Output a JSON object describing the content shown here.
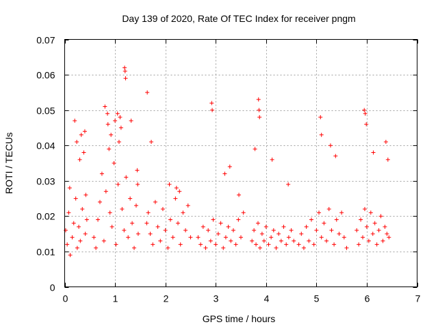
{
  "chart_data": {
    "type": "scatter",
    "title": "Day 139 of 2020, Rate Of TEC Index for receiver pngm",
    "xlabel": "GPS time / hours",
    "ylabel": "ROTI / TECUs",
    "xlim": [
      0,
      7
    ],
    "ylim": [
      0,
      0.07
    ],
    "grid": true,
    "marker": "+",
    "color": "#ff0000",
    "x_ticks": [
      "0",
      "1",
      "2",
      "3",
      "4",
      "5",
      "6",
      "7"
    ],
    "y_ticks": [
      "0",
      "0.01",
      "0.02",
      "0.03",
      "0.04",
      "0.05",
      "0.06",
      "0.07"
    ],
    "series": [
      {
        "name": "ROTI",
        "x": [
          0.02,
          0.05,
          0.08,
          0.11,
          0.15,
          0.18,
          0.22,
          0.25,
          0.28,
          0.31,
          0.35,
          0.38,
          0.41,
          0.44,
          0.1,
          0.2,
          0.24,
          0.3,
          0.33,
          0.4,
          0.42,
          0.58,
          0.62,
          0.66,
          0.7,
          0.74,
          0.78,
          0.82,
          0.86,
          0.9,
          0.94,
          0.98,
          1.02,
          1.06,
          1.1,
          1.14,
          1.18,
          1.22,
          1.26,
          1.3,
          1.34,
          1.38,
          1.42,
          1.46,
          0.8,
          0.85,
          0.88,
          0.92,
          1.0,
          1.05,
          1.08,
          1.12,
          1.19,
          1.2,
          1.21,
          1.32,
          1.44,
          1.45,
          1.63,
          1.66,
          1.7,
          1.75,
          1.8,
          1.85,
          1.9,
          1.95,
          2.0,
          2.05,
          2.1,
          2.15,
          2.2,
          2.25,
          2.3,
          2.35,
          2.4,
          2.45,
          2.5,
          1.64,
          1.72,
          2.08,
          2.22,
          2.28,
          2.65,
          2.7,
          2.75,
          2.8,
          2.85,
          2.9,
          2.95,
          3.0,
          3.05,
          3.1,
          3.15,
          3.2,
          3.25,
          3.3,
          3.35,
          3.4,
          3.45,
          3.5,
          3.55,
          2.92,
          2.93,
          3.18,
          3.28,
          3.46,
          3.72,
          3.76,
          3.8,
          3.84,
          3.88,
          3.92,
          3.96,
          4.0,
          4.05,
          4.1,
          4.15,
          4.2,
          4.25,
          4.3,
          4.35,
          4.4,
          4.45,
          4.5,
          4.55,
          3.85,
          3.86,
          3.87,
          3.78,
          4.12,
          4.44,
          4.65,
          4.7,
          4.75,
          4.8,
          4.85,
          4.9,
          4.95,
          5.0,
          5.05,
          5.1,
          5.15,
          5.2,
          5.25,
          5.3,
          5.35,
          5.4,
          5.45,
          5.5,
          5.55,
          5.6,
          5.08,
          5.1,
          5.28,
          5.38,
          5.8,
          5.84,
          5.88,
          5.92,
          5.96,
          6.0,
          6.04,
          6.08,
          6.12,
          6.16,
          6.2,
          6.24,
          6.28,
          6.32,
          6.36,
          6.4,
          6.44,
          5.95,
          5.97,
          5.99,
          6.13,
          6.38,
          6.42
        ],
        "y": [
          0.016,
          0.012,
          0.021,
          0.009,
          0.014,
          0.018,
          0.025,
          0.011,
          0.017,
          0.013,
          0.022,
          0.038,
          0.015,
          0.019,
          0.028,
          0.047,
          0.041,
          0.036,
          0.043,
          0.044,
          0.026,
          0.014,
          0.011,
          0.019,
          0.024,
          0.032,
          0.013,
          0.027,
          0.046,
          0.021,
          0.017,
          0.035,
          0.012,
          0.029,
          0.048,
          0.022,
          0.016,
          0.031,
          0.014,
          0.025,
          0.018,
          0.011,
          0.023,
          0.015,
          0.051,
          0.049,
          0.039,
          0.043,
          0.047,
          0.049,
          0.041,
          0.045,
          0.062,
          0.061,
          0.059,
          0.047,
          0.033,
          0.029,
          0.018,
          0.021,
          0.015,
          0.012,
          0.024,
          0.017,
          0.013,
          0.022,
          0.016,
          0.011,
          0.019,
          0.014,
          0.025,
          0.018,
          0.012,
          0.021,
          0.016,
          0.023,
          0.014,
          0.055,
          0.041,
          0.029,
          0.028,
          0.027,
          0.014,
          0.012,
          0.017,
          0.011,
          0.016,
          0.013,
          0.019,
          0.012,
          0.015,
          0.018,
          0.011,
          0.014,
          0.017,
          0.013,
          0.016,
          0.012,
          0.019,
          0.014,
          0.021,
          0.052,
          0.05,
          0.032,
          0.034,
          0.026,
          0.013,
          0.016,
          0.012,
          0.018,
          0.011,
          0.015,
          0.013,
          0.017,
          0.012,
          0.014,
          0.016,
          0.011,
          0.015,
          0.013,
          0.017,
          0.012,
          0.014,
          0.016,
          0.013,
          0.053,
          0.05,
          0.048,
          0.039,
          0.036,
          0.029,
          0.012,
          0.015,
          0.011,
          0.017,
          0.013,
          0.019,
          0.012,
          0.016,
          0.021,
          0.014,
          0.018,
          0.013,
          0.022,
          0.016,
          0.012,
          0.019,
          0.015,
          0.021,
          0.014,
          0.011,
          0.048,
          0.043,
          0.04,
          0.037,
          0.016,
          0.012,
          0.019,
          0.014,
          0.022,
          0.017,
          0.013,
          0.021,
          0.015,
          0.018,
          0.012,
          0.016,
          0.02,
          0.013,
          0.017,
          0.015,
          0.014,
          0.05,
          0.049,
          0.046,
          0.038,
          0.041,
          0.036
        ]
      }
    ]
  }
}
